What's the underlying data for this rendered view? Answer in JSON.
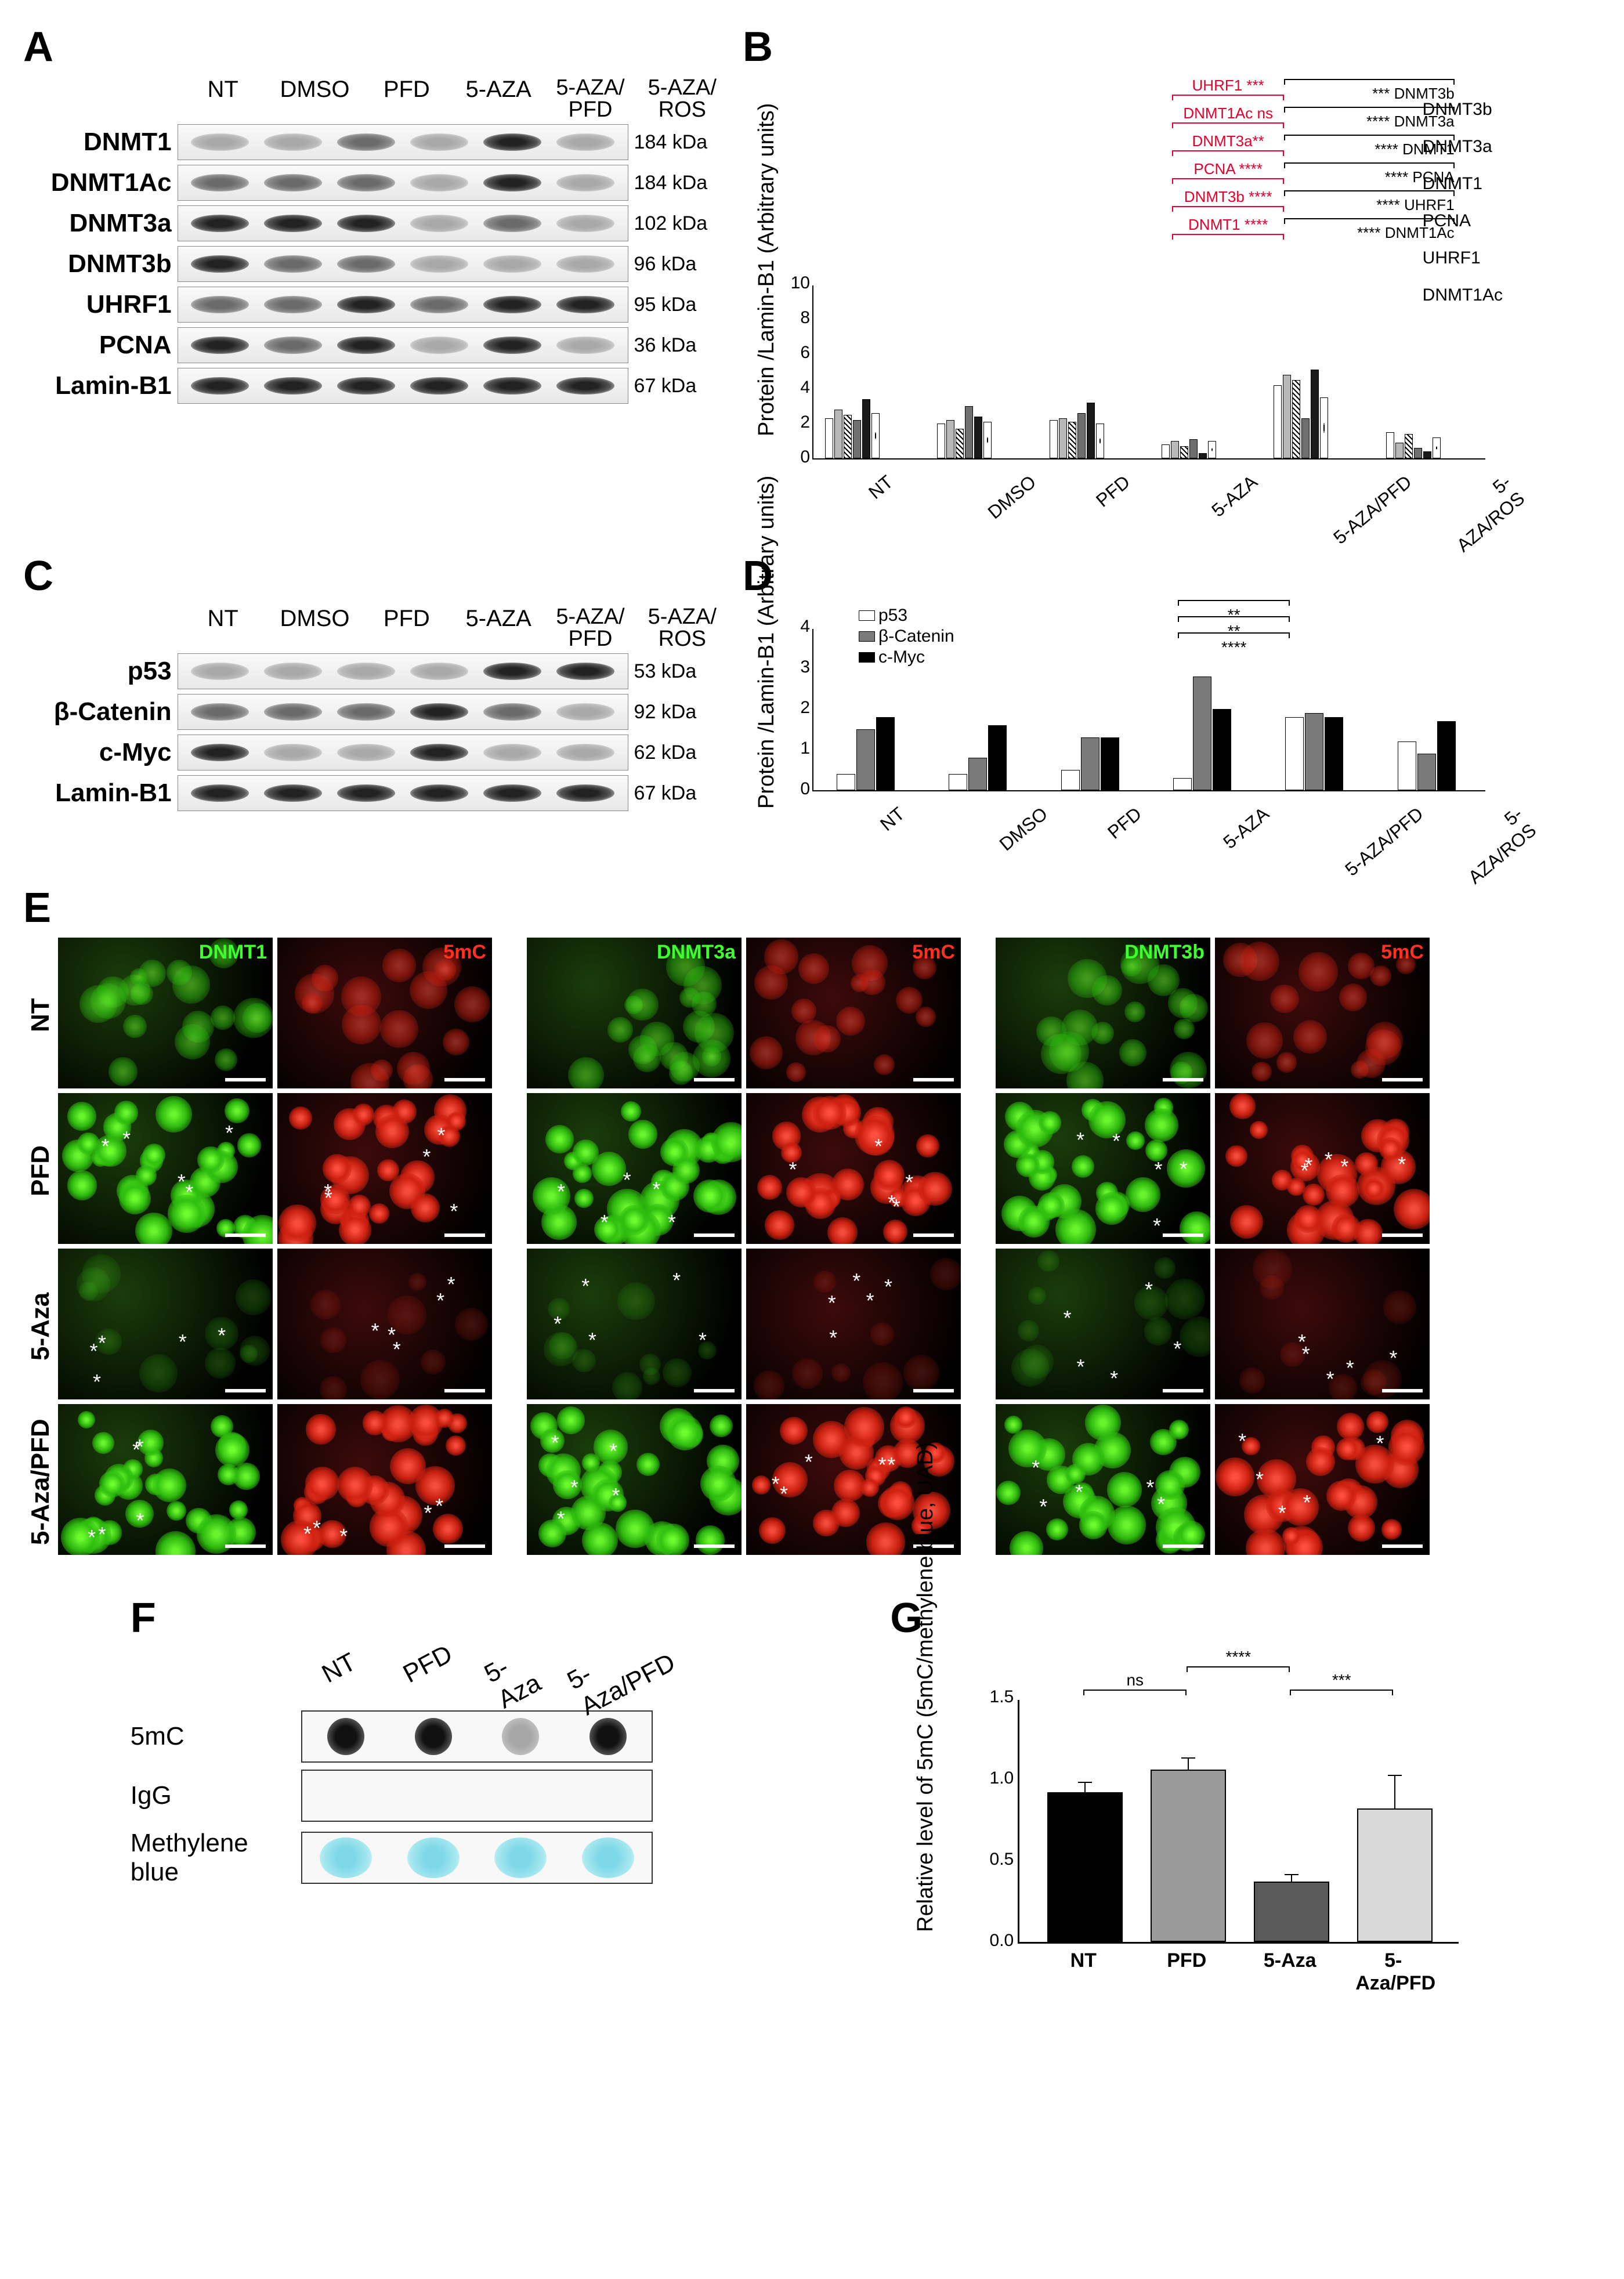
{
  "panelA": {
    "label": "A",
    "conditions": [
      "NT",
      "DMSO",
      "PFD",
      "5-AZA",
      "5-AZA/\nPFD",
      "5-AZA/\nROS"
    ],
    "rows": [
      {
        "name": "DNMT1",
        "kda": "184 kDa",
        "intensity": [
          "light",
          "light",
          "med",
          "light",
          "dark",
          "light"
        ]
      },
      {
        "name": "DNMT1Ac",
        "kda": "184 kDa",
        "intensity": [
          "med",
          "med",
          "med",
          "light",
          "dark",
          "light"
        ]
      },
      {
        "name": "DNMT3a",
        "kda": "102 kDa",
        "intensity": [
          "dark",
          "dark",
          "dark",
          "light",
          "med",
          "light"
        ]
      },
      {
        "name": "DNMT3b",
        "kda": "96 kDa",
        "intensity": [
          "dark",
          "med",
          "med",
          "light",
          "light",
          "light"
        ]
      },
      {
        "name": "UHRF1",
        "kda": "95 kDa",
        "intensity": [
          "med",
          "med",
          "dark",
          "med",
          "dark",
          "dark"
        ]
      },
      {
        "name": "PCNA",
        "kda": "36 kDa",
        "intensity": [
          "dark",
          "med",
          "dark",
          "light",
          "dark",
          "light"
        ]
      },
      {
        "name": "Lamin-B1",
        "kda": "67 kDa",
        "intensity": [
          "dark",
          "dark",
          "dark",
          "dark",
          "dark",
          "dark"
        ]
      }
    ]
  },
  "panelB": {
    "label": "B",
    "ylabel": "Protein /Lamin-B1\n(Arbitrary units)",
    "ymax": 10,
    "ytick_step": 2,
    "categories": [
      "NT",
      "DMSO",
      "PFD",
      "5-AZA",
      "5-AZA/PFD",
      "5-AZA/ROS"
    ],
    "series": [
      "DNMT3b",
      "DNMT3a",
      "DNMT1",
      "PCNA",
      "UHRF1",
      "DNMT1Ac"
    ],
    "series_colors": [
      "#ffffff",
      "#b8b8b8",
      "#ffffff",
      "#6f6f6f",
      "#1a1a1a",
      "#ffffff"
    ],
    "series_hatch": [
      false,
      false,
      "diag",
      false,
      false,
      "dots"
    ],
    "values": [
      [
        2.3,
        2.8,
        2.5,
        2.2,
        3.4,
        2.6
      ],
      [
        2.0,
        2.2,
        1.7,
        3.0,
        2.4,
        2.1
      ],
      [
        2.2,
        2.3,
        2.1,
        2.6,
        3.2,
        2.0
      ],
      [
        0.8,
        1.0,
        0.7,
        1.1,
        0.3,
        1.0
      ],
      [
        4.2,
        4.8,
        4.5,
        2.3,
        5.1,
        3.5
      ],
      [
        1.5,
        0.9,
        1.4,
        0.6,
        0.4,
        1.2
      ]
    ],
    "sig_red": [
      {
        "label": "UHRF1 ***",
        "from": 3,
        "to": 4
      },
      {
        "label": "DNMT1Ac ns",
        "from": 3,
        "to": 4
      },
      {
        "label": "DNMT3a**",
        "from": 3,
        "to": 4
      },
      {
        "label": "PCNA ****",
        "from": 3,
        "to": 4
      },
      {
        "label": "DNMT3b ****",
        "from": 3,
        "to": 4
      },
      {
        "label": "DNMT1 ****",
        "from": 3,
        "to": 4
      }
    ],
    "sig_black": [
      {
        "label": "*** DNMT3b",
        "from": 4,
        "to": 5
      },
      {
        "label": "**** DNMT3a",
        "from": 4,
        "to": 5
      },
      {
        "label": "**** DNMT1",
        "from": 4,
        "to": 5
      },
      {
        "label": "**** PCNA",
        "from": 4,
        "to": 5
      },
      {
        "label": "**** UHRF1",
        "from": 4,
        "to": 5
      },
      {
        "label": "**** DNMT1Ac",
        "from": 4,
        "to": 5
      }
    ]
  },
  "panelC": {
    "label": "C",
    "conditions": [
      "NT",
      "DMSO",
      "PFD",
      "5-AZA",
      "5-AZA/\nPFD",
      "5-AZA/\nROS"
    ],
    "rows": [
      {
        "name": "p53",
        "kda": "53 kDa",
        "intensity": [
          "light",
          "light",
          "light",
          "light",
          "dark",
          "dark"
        ]
      },
      {
        "name": "β-Catenin",
        "kda": "92 kDa",
        "intensity": [
          "med",
          "med",
          "med",
          "dark",
          "med",
          "light"
        ]
      },
      {
        "name": "c-Myc",
        "kda": "62 kDa",
        "intensity": [
          "dark",
          "light",
          "light",
          "dark",
          "light",
          "light"
        ]
      },
      {
        "name": "Lamin-B1",
        "kda": "67 kDa",
        "intensity": [
          "dark",
          "dark",
          "dark",
          "dark",
          "dark",
          "dark"
        ]
      }
    ]
  },
  "panelD": {
    "label": "D",
    "ylabel": "Protein /Lamin-B1\n(Arbitrary units)",
    "ymax": 4,
    "ytick_step": 1,
    "categories": [
      "NT",
      "DMSO",
      "PFD",
      "5-AZA",
      "5-AZA/PFD",
      "5-AZA/ROS"
    ],
    "series": [
      "p53",
      "β-Catenin",
      "c-Myc"
    ],
    "series_colors": [
      "#ffffff",
      "#7a7a7a",
      "#000000"
    ],
    "values": [
      [
        0.4,
        1.5,
        1.8
      ],
      [
        0.4,
        0.8,
        1.6
      ],
      [
        0.5,
        1.3,
        1.3
      ],
      [
        0.3,
        2.8,
        2.0
      ],
      [
        1.8,
        1.9,
        1.8
      ],
      [
        1.2,
        0.9,
        1.7
      ]
    ],
    "sig": [
      {
        "label": "**",
        "from": 3,
        "to": 4
      },
      {
        "label": "**",
        "from": 3,
        "to": 4
      },
      {
        "label": "****",
        "from": 3,
        "to": 4
      }
    ]
  },
  "panelE": {
    "label": "E",
    "row_labels": [
      "NT",
      "PFD",
      "5-Aza",
      "5-Aza/PFD"
    ],
    "columns": [
      {
        "green": "DNMT1",
        "red": "5mC"
      },
      {
        "green": "DNMT3a",
        "red": "5mC"
      },
      {
        "green": "DNMT3b",
        "red": "5mC"
      }
    ],
    "green_color": "#3fff2f",
    "red_color": "#ff3020",
    "intensity": {
      "NT": {
        "green": "dim",
        "red": "dim",
        "asterisks": false
      },
      "PFD": {
        "green": "bright",
        "red": "bright",
        "asterisks": true
      },
      "5-Aza": {
        "green": "verydim",
        "red": "verydim",
        "asterisks": true
      },
      "5-Aza/PFD": {
        "green": "bright",
        "red": "bright",
        "asterisks": true
      }
    }
  },
  "panelF": {
    "label": "F",
    "conditions": [
      "NT",
      "PFD",
      "5-Aza",
      "5-Aza/PFD"
    ],
    "rows": [
      {
        "name": "5mC",
        "type": "dot",
        "intensity": [
          "dark",
          "dark",
          "faint",
          "dark"
        ]
      },
      {
        "name": "IgG",
        "type": "dot",
        "intensity": [
          "none",
          "none",
          "none",
          "none"
        ]
      },
      {
        "name": "Methylene blue",
        "type": "blue",
        "intensity": [
          "blue",
          "blue",
          "blue",
          "blue"
        ]
      }
    ]
  },
  "panelG": {
    "label": "G",
    "ylabel": "Relative level of 5mC\n(5mC/methylene blue, UAD)",
    "ymax": 1.5,
    "ytick_step": 0.5,
    "categories": [
      "NT",
      "PFD",
      "5-Aza",
      "5-Aza/PFD"
    ],
    "values": [
      0.92,
      1.06,
      0.37,
      0.82
    ],
    "errors": [
      0.06,
      0.07,
      0.04,
      0.2
    ],
    "bar_colors": [
      "#000000",
      "#9a9a9a",
      "#5a5a5a",
      "#d8d8d8"
    ],
    "sig": [
      {
        "label": "ns",
        "from": 0,
        "to": 1
      },
      {
        "label": "****",
        "from": 1,
        "to": 2
      },
      {
        "label": "***",
        "from": 2,
        "to": 3
      }
    ]
  }
}
